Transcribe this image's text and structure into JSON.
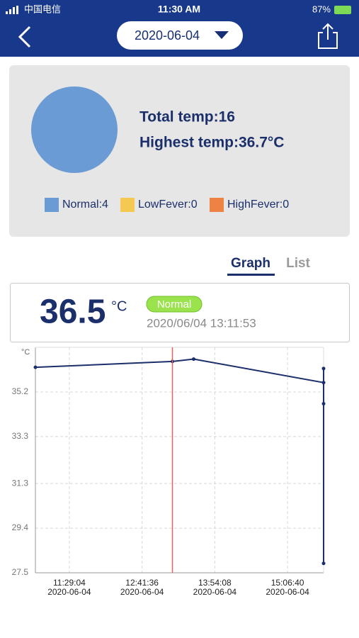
{
  "status_bar": {
    "carrier": "中国电信",
    "time": "11:30 AM",
    "battery": "87%"
  },
  "header": {
    "date": "2020-06-04"
  },
  "summary": {
    "total": "Total temp:16",
    "highest": "Highest temp:36.7°C",
    "pie": {
      "type": "pie",
      "values": [
        4,
        0,
        0
      ],
      "value_labels": [
        "Normal:4",
        "LowFever:0",
        "HighFever:0"
      ],
      "colors": [
        "#6a9bd4",
        "#f5c851",
        "#ee8244"
      ]
    }
  },
  "tabs": [
    "Graph",
    "List"
  ],
  "reading": {
    "value": "36.5",
    "unit": "°C",
    "status": "Normal",
    "time": "2020/06/04 13:11:53"
  },
  "chart_data": {
    "type": "line",
    "y_unit": "°C",
    "x": [
      "2020-06-04 10:55:14",
      "2020-06-04 13:11:53",
      "2020-06-04 13:33:04",
      "2020-06-04 15:42:37",
      "2020-06-04 15:42:37",
      "2020-06-04 15:42:37",
      "2020-06-04 15:42:37"
    ],
    "series": [
      {
        "color": "#1b2f6b",
        "values": [
          36.25,
          36.5,
          36.6,
          35.6,
          36.2,
          34.7,
          27.9
        ]
      }
    ],
    "xlim": [
      "2020-06-04 10:55:14",
      "2020-06-04 15:42:37"
    ],
    "ylim": [
      27.5,
      37.1
    ],
    "yticks": [
      27.5,
      29.4,
      31.3,
      33.3,
      35.2
    ],
    "xticks": [
      {
        "value": "2020-06-04 11:29:04",
        "label": "11:29:04\n2020-06-04"
      },
      {
        "value": "2020-06-04 12:41:36",
        "label": "12:41:36\n2020-06-04"
      },
      {
        "value": "2020-06-04 13:54:08",
        "label": "13:54:08\n2020-06-04"
      },
      {
        "value": "2020-06-04 15:06:40",
        "label": "15:06:40\n2020-06-04"
      }
    ],
    "cursor_x": "2020-06-04 13:11:53",
    "cursor_color": "#e8605a",
    "grid": true
  }
}
